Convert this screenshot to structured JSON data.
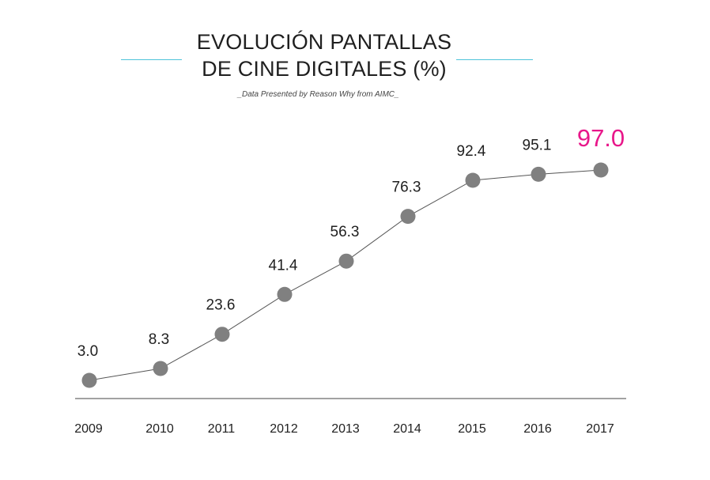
{
  "header": {
    "title_line1": "EVOLUCIÓN PANTALLAS",
    "title_line2": "DE CINE DIGITALES (%)",
    "subtitle": "_Data Presented by Reason Why from AIMC_"
  },
  "colors": {
    "accent_line": "#4fc3d9",
    "highlight": "#e8178a",
    "marker": "#808080",
    "line": "#555555",
    "axis": "#444444"
  },
  "chart_data": {
    "type": "line",
    "title": "EVOLUCIÓN PANTALLAS DE CINE DIGITALES (%)",
    "subtitle": "_Data Presented by Reason Why from AIMC_",
    "categories": [
      "2009",
      "2010",
      "2011",
      "2012",
      "2013",
      "2014",
      "2015",
      "2016",
      "2017"
    ],
    "values": [
      3.0,
      8.3,
      23.6,
      41.4,
      56.3,
      76.3,
      92.4,
      95.1,
      97.0
    ],
    "value_labels": [
      "3.0",
      "8.3",
      "23.6",
      "41.4",
      "56.3",
      "76.3",
      "92.4",
      "95.1",
      "97.0"
    ],
    "highlight_index": 8,
    "grid": false,
    "legend": "none"
  }
}
